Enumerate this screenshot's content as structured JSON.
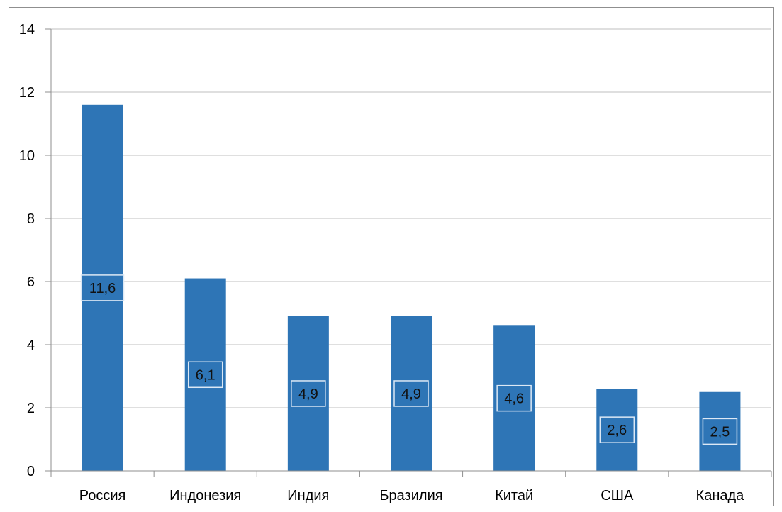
{
  "chart_data": {
    "type": "bar",
    "categories": [
      "Россия",
      "Индонезия",
      "Индия",
      "Бразилия",
      "Китай",
      "США",
      "Канада"
    ],
    "values": [
      11.6,
      6.1,
      4.9,
      4.9,
      4.6,
      2.6,
      2.5
    ],
    "data_labels": [
      "11,6",
      "6,1",
      "4,9",
      "4,9",
      "4,6",
      "2,6",
      "2,5"
    ],
    "y_ticks": [
      0,
      2,
      4,
      6,
      8,
      10,
      12,
      14
    ],
    "ylim": [
      0,
      14
    ],
    "title": "",
    "xlabel": "",
    "ylabel": "",
    "grid": true,
    "legend": "none",
    "colors": {
      "bar": "#2E75B6",
      "grid": "#BFBFBF",
      "axis": "#8F8F8F",
      "label_border": "#DCE8F5"
    }
  }
}
